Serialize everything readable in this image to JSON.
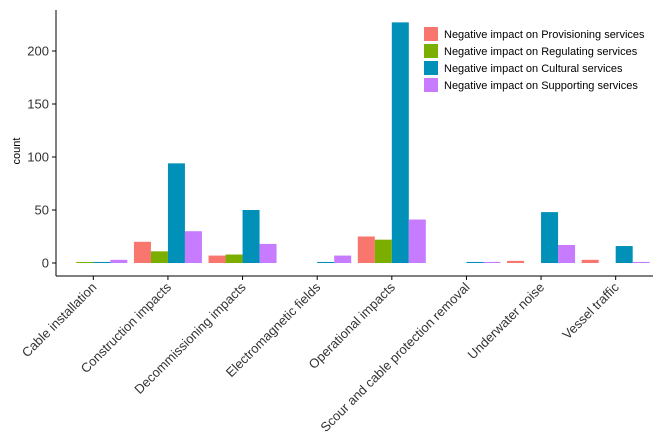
{
  "chart_data": {
    "type": "bar",
    "title": "",
    "xlabel": "",
    "ylabel": "count",
    "ylim": [
      0,
      230
    ],
    "yticks": [
      0,
      50,
      100,
      150,
      200
    ],
    "grid": false,
    "legend_position": "top-right",
    "categories": [
      "Cable installation",
      "Construction impacts",
      "Decommissioning impacts",
      "Electromagnetic fields",
      "Operational impacts",
      "Scour and cable protection removal",
      "Underwater noise",
      "Vessel traffic"
    ],
    "series": [
      {
        "name": "Negative impact on Provisioning services",
        "color": "#F8766D",
        "values": [
          0,
          20,
          7,
          0,
          25,
          0,
          2,
          3
        ]
      },
      {
        "name": "Negative impact on Regulating services",
        "color": "#7CAE00",
        "values": [
          1,
          11,
          8,
          0,
          22,
          0,
          0,
          0
        ]
      },
      {
        "name": "Negative impact on Cultural services",
        "color": "#0090B8",
        "values": [
          1,
          94,
          50,
          1,
          227,
          1,
          48,
          16
        ]
      },
      {
        "name": "Negative impact on Supporting services",
        "color": "#C77CFF",
        "values": [
          3,
          30,
          18,
          7,
          41,
          1,
          17,
          1
        ]
      }
    ]
  }
}
